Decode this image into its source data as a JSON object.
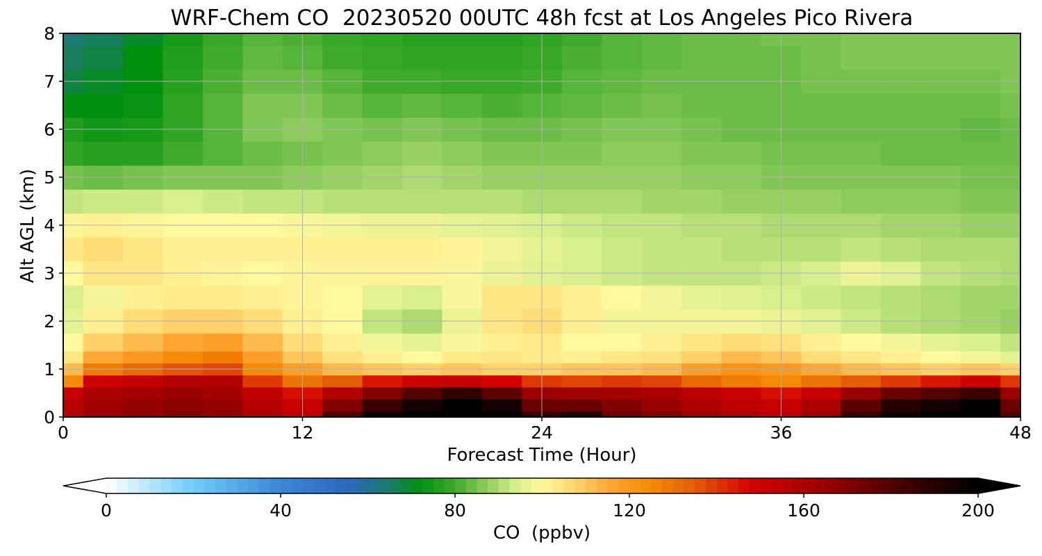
{
  "chart_data": {
    "type": "heatmap",
    "title": "WRF-Chem CO  20230520 00UTC 48h fcst at Los Angeles Pico Rivera",
    "xlabel": "Forecast Time (Hour)",
    "ylabel": "Alt AGL (km)",
    "xlim": [
      0,
      48
    ],
    "ylim": [
      0,
      8
    ],
    "xticks": [
      "0",
      "12",
      "24",
      "36",
      "48"
    ],
    "yticks": [
      "0",
      "1",
      "2",
      "3",
      "4",
      "5",
      "6",
      "7",
      "8"
    ],
    "grid": true,
    "x": [
      0,
      2,
      4,
      6,
      8,
      10,
      12,
      14,
      16,
      18,
      20,
      22,
      24,
      26,
      28,
      30,
      32,
      34,
      36,
      38,
      40,
      42,
      44,
      46,
      48
    ],
    "y": [
      0,
      0.25,
      0.5,
      0.75,
      1,
      1.25,
      1.5,
      2,
      2.5,
      3,
      3.5,
      4,
      4.5,
      5,
      5.5,
      6,
      6.5,
      7,
      7.5,
      8
    ],
    "z": [
      [
        158,
        165,
        168,
        170,
        167,
        160,
        155,
        180,
        195,
        200,
        205,
        200,
        185,
        190,
        175,
        170,
        165,
        160,
        155,
        165,
        185,
        195,
        200,
        205,
        180
      ],
      [
        156,
        163,
        166,
        168,
        166,
        158,
        152,
        170,
        185,
        195,
        200,
        195,
        175,
        175,
        170,
        165,
        160,
        155,
        152,
        160,
        178,
        190,
        195,
        200,
        175
      ],
      [
        152,
        160,
        162,
        165,
        162,
        153,
        146,
        158,
        170,
        180,
        188,
        178,
        165,
        163,
        162,
        160,
        155,
        150,
        146,
        152,
        165,
        175,
        180,
        185,
        165
      ],
      [
        125,
        150,
        153,
        158,
        158,
        140,
        130,
        135,
        145,
        150,
        152,
        148,
        140,
        138,
        140,
        138,
        132,
        128,
        125,
        130,
        135,
        140,
        145,
        150,
        140
      ],
      [
        112,
        128,
        132,
        136,
        138,
        125,
        118,
        112,
        110,
        108,
        110,
        108,
        108,
        110,
        110,
        112,
        118,
        122,
        120,
        115,
        112,
        110,
        108,
        110,
        108
      ],
      [
        104,
        115,
        120,
        125,
        128,
        118,
        110,
        105,
        102,
        100,
        103,
        104,
        103,
        102,
        104,
        105,
        108,
        112,
        110,
        106,
        104,
        102,
        100,
        98,
        96
      ],
      [
        100,
        108,
        112,
        116,
        118,
        112,
        106,
        102,
        98,
        96,
        99,
        102,
        103,
        100,
        100,
        102,
        104,
        106,
        105,
        102,
        100,
        98,
        96,
        94,
        92
      ],
      [
        96,
        102,
        106,
        108,
        108,
        106,
        102,
        100,
        92,
        90,
        97,
        104,
        106,
        102,
        98,
        98,
        98,
        98,
        97,
        95,
        93,
        91,
        90,
        89,
        88
      ],
      [
        94,
        98,
        102,
        103,
        103,
        102,
        101,
        100,
        96,
        94,
        99,
        104,
        104,
        102,
        100,
        98,
        96,
        95,
        94,
        93,
        92,
        91,
        90,
        89,
        89
      ],
      [
        100,
        104,
        104,
        102,
        101,
        100,
        101,
        101,
        101,
        101,
        99,
        97,
        95,
        94,
        93,
        92,
        92,
        92,
        93,
        94,
        97,
        95,
        92,
        91,
        90
      ],
      [
        104,
        106,
        104,
        102,
        102,
        102,
        102,
        102,
        102,
        102,
        101,
        98,
        96,
        94,
        93,
        92,
        92,
        91,
        91,
        91,
        92,
        91,
        90,
        90,
        90
      ],
      [
        101,
        102,
        101,
        100,
        100,
        100,
        99,
        98,
        97,
        97,
        96,
        95,
        94,
        93,
        92,
        92,
        91,
        91,
        90,
        90,
        90,
        89,
        89,
        88,
        88
      ],
      [
        92,
        93,
        93,
        94,
        93,
        92,
        92,
        91,
        91,
        91,
        91,
        91,
        90,
        90,
        90,
        89,
        89,
        88,
        88,
        88,
        87,
        87,
        87,
        86,
        86
      ],
      [
        85,
        84,
        85,
        86,
        86,
        86,
        87,
        88,
        89,
        90,
        89,
        88,
        88,
        88,
        88,
        88,
        87,
        87,
        86,
        86,
        86,
        86,
        86,
        85,
        85
      ],
      [
        78,
        77,
        77,
        80,
        82,
        84,
        85,
        86,
        87,
        88,
        87,
        86,
        86,
        86,
        87,
        87,
        86,
        86,
        85,
        85,
        85,
        84,
        84,
        84,
        84
      ],
      [
        76,
        74,
        75,
        78,
        82,
        86,
        87,
        86,
        85,
        86,
        85,
        84,
        84,
        85,
        86,
        86,
        85,
        84,
        84,
        84,
        84,
        84,
        84,
        83,
        84
      ],
      [
        72,
        72,
        73,
        78,
        82,
        86,
        86,
        84,
        82,
        83,
        82,
        81,
        82,
        83,
        84,
        85,
        84,
        84,
        84,
        84,
        84,
        84,
        84,
        84,
        85
      ],
      [
        68,
        70,
        72,
        77,
        81,
        84,
        84,
        82,
        80,
        80,
        79,
        79,
        80,
        82,
        83,
        84,
        84,
        84,
        84,
        85,
        85,
        85,
        85,
        85,
        86
      ],
      [
        66,
        68,
        72,
        76,
        80,
        83,
        82,
        80,
        79,
        78,
        78,
        78,
        79,
        81,
        82,
        83,
        84,
        84,
        84,
        85,
        86,
        86,
        86,
        86,
        86
      ],
      [
        64,
        66,
        70,
        75,
        79,
        82,
        81,
        79,
        78,
        77,
        77,
        77,
        78,
        80,
        82,
        83,
        84,
        84,
        85,
        85,
        86,
        86,
        86,
        86,
        86
      ]
    ],
    "colorbar": {
      "label": "CO  (ppbv)",
      "ticks": [
        "0",
        "40",
        "80",
        "120",
        "160",
        "200"
      ],
      "min": 0,
      "max": 200,
      "extend": "both",
      "colors": [
        {
          "v": 0,
          "c": "#ffffff"
        },
        {
          "v": 20,
          "c": "#6fcdfa"
        },
        {
          "v": 40,
          "c": "#3a86d8"
        },
        {
          "v": 55,
          "c": "#2d68c0"
        },
        {
          "v": 65,
          "c": "#1c7a6a"
        },
        {
          "v": 72,
          "c": "#00900e"
        },
        {
          "v": 80,
          "c": "#3faa2c"
        },
        {
          "v": 88,
          "c": "#98d064"
        },
        {
          "v": 94,
          "c": "#d8ef8e"
        },
        {
          "v": 100,
          "c": "#fff99e"
        },
        {
          "v": 107,
          "c": "#ffd870"
        },
        {
          "v": 115,
          "c": "#ffa838"
        },
        {
          "v": 125,
          "c": "#f58a06"
        },
        {
          "v": 135,
          "c": "#e35c06"
        },
        {
          "v": 148,
          "c": "#d40000"
        },
        {
          "v": 165,
          "c": "#9a0000"
        },
        {
          "v": 185,
          "c": "#3a0000"
        },
        {
          "v": 200,
          "c": "#000000"
        }
      ]
    }
  }
}
